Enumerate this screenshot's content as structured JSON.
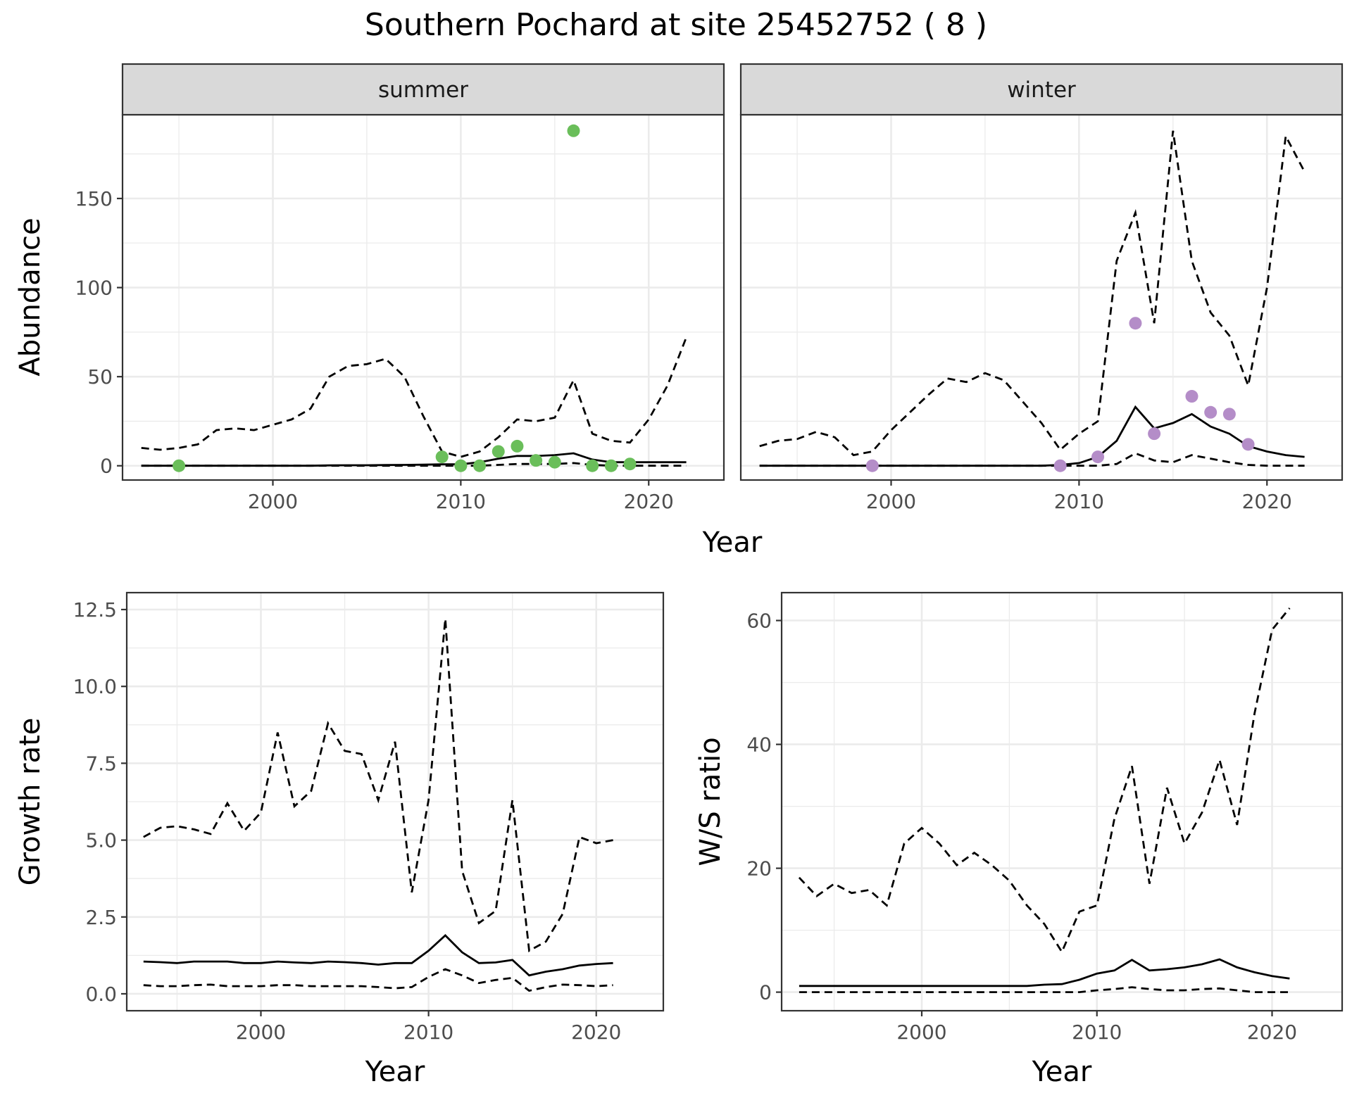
{
  "title": "Southern Pochard at site 25452752 ( 8 )",
  "chart_data": [
    {
      "id": "abundance",
      "type": "line",
      "ylabel": "Abundance",
      "xlabel": "Year",
      "xlim": [
        1992,
        2024
      ],
      "ylim": [
        -8,
        197
      ],
      "xticks": [
        2000,
        2010,
        2020
      ],
      "yticks": [
        0,
        50,
        100,
        150
      ],
      "grid": true,
      "facets": [
        {
          "label": "summer",
          "point_color": "#6abe5a",
          "x": [
            1993,
            1994,
            1995,
            1996,
            1997,
            1998,
            1999,
            2000,
            2001,
            2002,
            2003,
            2004,
            2005,
            2006,
            2007,
            2008,
            2009,
            2010,
            2011,
            2012,
            2013,
            2014,
            2015,
            2016,
            2017,
            2018,
            2019,
            2020,
            2021,
            2022
          ],
          "median": [
            0,
            0,
            0,
            0,
            0,
            0,
            0,
            0,
            0,
            0,
            0.2,
            0.3,
            0.3,
            0.4,
            0.5,
            0.6,
            0.8,
            0.8,
            2,
            4,
            5.5,
            5.5,
            6,
            7,
            3.5,
            2,
            2,
            2,
            2,
            2
          ],
          "upper": [
            10,
            9,
            10,
            12,
            20,
            21,
            20,
            23,
            26,
            32,
            50,
            56,
            57,
            60,
            50,
            28,
            8,
            5,
            8,
            16,
            26,
            25,
            27,
            48,
            18,
            14,
            13,
            26,
            45,
            72
          ],
          "lower": [
            0,
            0,
            0,
            0,
            0,
            0,
            0,
            0,
            0,
            0,
            0,
            0,
            0,
            0,
            0,
            0,
            0,
            0,
            0,
            0.5,
            1,
            1,
            1,
            1.5,
            0.5,
            0,
            0,
            0,
            0,
            0
          ],
          "points": [
            {
              "x": 1995,
              "y": 0
            },
            {
              "x": 2009,
              "y": 5
            },
            {
              "x": 2010,
              "y": 0
            },
            {
              "x": 2011,
              "y": 0
            },
            {
              "x": 2012,
              "y": 8
            },
            {
              "x": 2013,
              "y": 11
            },
            {
              "x": 2014,
              "y": 3
            },
            {
              "x": 2015,
              "y": 2
            },
            {
              "x": 2016,
              "y": 188
            },
            {
              "x": 2017,
              "y": 0
            },
            {
              "x": 2018,
              "y": 0
            },
            {
              "x": 2019,
              "y": 1
            }
          ]
        },
        {
          "label": "winter",
          "point_color": "#b48dc8",
          "x": [
            1993,
            1994,
            1995,
            1996,
            1997,
            1998,
            1999,
            2000,
            2001,
            2002,
            2003,
            2004,
            2005,
            2006,
            2007,
            2008,
            2009,
            2010,
            2011,
            2012,
            2013,
            2014,
            2015,
            2016,
            2017,
            2018,
            2019,
            2020,
            2021,
            2022
          ],
          "median": [
            0,
            0,
            0,
            0,
            0,
            0,
            0,
            0,
            0,
            0,
            0,
            0,
            0,
            0,
            0,
            0,
            0.5,
            1.5,
            5,
            14,
            33,
            21,
            24,
            29,
            22,
            18,
            11,
            8,
            6,
            5
          ],
          "upper": [
            11,
            14,
            15,
            19,
            16,
            6,
            8,
            20,
            30,
            40,
            49,
            47,
            52,
            48,
            36,
            24,
            9,
            18,
            25,
            115,
            142,
            80,
            188,
            115,
            86,
            73,
            45,
            100,
            185,
            165
          ],
          "lower": [
            0,
            0,
            0,
            0,
            0,
            0,
            0,
            0,
            0,
            0,
            0,
            0,
            0,
            0,
            0,
            0,
            0,
            0,
            0,
            1,
            7,
            3,
            2,
            6,
            4,
            2,
            0.5,
            0,
            0,
            0
          ],
          "points": [
            {
              "x": 1999,
              "y": 0
            },
            {
              "x": 2009,
              "y": 0
            },
            {
              "x": 2011,
              "y": 5
            },
            {
              "x": 2013,
              "y": 80
            },
            {
              "x": 2014,
              "y": 18
            },
            {
              "x": 2016,
              "y": 39
            },
            {
              "x": 2017,
              "y": 30
            },
            {
              "x": 2018,
              "y": 29
            },
            {
              "x": 2019,
              "y": 12
            }
          ]
        }
      ]
    },
    {
      "id": "growth",
      "type": "line",
      "ylabel": "Growth rate",
      "xlabel": "Year",
      "xlim": [
        1992,
        2024
      ],
      "ylim": [
        -0.55,
        13.05
      ],
      "xticks": [
        2000,
        2010,
        2020
      ],
      "yticks": [
        0.0,
        2.5,
        5.0,
        7.5,
        10.0,
        12.5
      ],
      "ytick_labels": [
        "0.0",
        "2.5",
        "5.0",
        "7.5",
        "10.0",
        "12.5"
      ],
      "grid": true,
      "x": [
        1993,
        1994,
        1995,
        1996,
        1997,
        1998,
        1999,
        2000,
        2001,
        2002,
        2003,
        2004,
        2005,
        2006,
        2007,
        2008,
        2009,
        2010,
        2011,
        2012,
        2013,
        2014,
        2015,
        2016,
        2017,
        2018,
        2019,
        2020,
        2021
      ],
      "median": [
        1.05,
        1.03,
        1.0,
        1.05,
        1.05,
        1.05,
        1.0,
        1.0,
        1.05,
        1.02,
        1.0,
        1.05,
        1.03,
        1.0,
        0.95,
        1.0,
        1.0,
        1.4,
        1.9,
        1.35,
        1.0,
        1.02,
        1.1,
        0.6,
        0.72,
        0.8,
        0.92,
        0.97,
        1.0
      ],
      "upper": [
        5.1,
        5.4,
        5.45,
        5.35,
        5.2,
        6.2,
        5.3,
        5.9,
        8.5,
        6.1,
        6.6,
        8.8,
        7.9,
        7.8,
        6.3,
        8.2,
        3.3,
        6.3,
        12.2,
        4.0,
        2.3,
        2.7,
        6.3,
        1.4,
        1.7,
        2.6,
        5.1,
        4.9,
        5.0
      ],
      "lower": [
        0.28,
        0.25,
        0.25,
        0.28,
        0.3,
        0.25,
        0.25,
        0.25,
        0.28,
        0.28,
        0.25,
        0.25,
        0.25,
        0.25,
        0.22,
        0.18,
        0.22,
        0.55,
        0.8,
        0.6,
        0.35,
        0.45,
        0.52,
        0.1,
        0.22,
        0.3,
        0.28,
        0.25,
        0.28
      ]
    },
    {
      "id": "ws-ratio",
      "type": "line",
      "ylabel": "W/S ratio",
      "xlabel": "Year",
      "xlim": [
        1992,
        2024
      ],
      "ylim": [
        -3,
        64.5
      ],
      "xticks": [
        2000,
        2010,
        2020
      ],
      "yticks": [
        0,
        20,
        40,
        60
      ],
      "grid": true,
      "x": [
        1993,
        1994,
        1995,
        1996,
        1997,
        1998,
        1999,
        2000,
        2001,
        2002,
        2003,
        2004,
        2005,
        2006,
        2007,
        2008,
        2009,
        2010,
        2011,
        2012,
        2013,
        2014,
        2015,
        2016,
        2017,
        2018,
        2019,
        2020,
        2021
      ],
      "median": [
        1,
        1,
        1,
        1,
        1,
        1,
        1,
        1,
        1,
        1,
        1,
        1,
        1,
        1,
        1.2,
        1.3,
        2,
        3,
        3.5,
        5.2,
        3.5,
        3.7,
        4,
        4.5,
        5.3,
        4,
        3.2,
        2.6,
        2.2
      ],
      "upper": [
        18.5,
        15.5,
        17.5,
        16,
        16.5,
        14,
        24,
        26.5,
        24,
        20.5,
        22.5,
        20.5,
        18,
        14,
        11,
        6.5,
        13,
        14,
        28,
        36.5,
        17.5,
        33,
        24,
        29,
        37.5,
        27,
        45,
        58.5,
        62
      ],
      "lower": [
        0,
        0,
        0,
        0,
        0,
        0,
        0,
        0,
        0,
        0,
        0,
        0,
        0,
        0,
        0,
        0,
        0,
        0.3,
        0.5,
        0.8,
        0.5,
        0.3,
        0.3,
        0.5,
        0.6,
        0.3,
        0,
        0,
        0
      ]
    }
  ]
}
